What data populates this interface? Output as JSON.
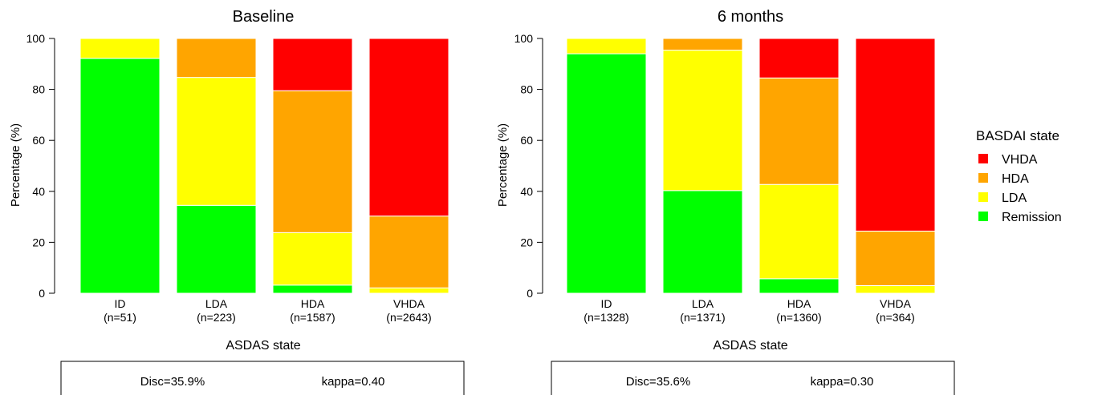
{
  "legend": {
    "title": "BASDAI state",
    "entries": [
      {
        "label": "VHDA",
        "color": "#FF0000"
      },
      {
        "label": "HDA",
        "color": "#FFA500"
      },
      {
        "label": "LDA",
        "color": "#FFFF00"
      },
      {
        "label": "Remission",
        "color": "#00FF00"
      }
    ]
  },
  "chart_data": [
    {
      "type": "bar",
      "stacked": true,
      "title": "Baseline",
      "xlabel": "ASDAS state",
      "ylabel": "Percentage (%)",
      "ylim": [
        0,
        100
      ],
      "yticks": [
        0,
        20,
        40,
        60,
        80,
        100
      ],
      "categories": [
        "ID",
        "LDA",
        "HDA",
        "VHDA"
      ],
      "category_counts": [
        "(n=51)",
        "(n=223)",
        "(n=1587)",
        "(n=2643)"
      ],
      "series": [
        {
          "name": "Remission",
          "color": "#00FF00",
          "values": [
            92.2,
            34.5,
            3.2,
            0.0
          ]
        },
        {
          "name": "LDA",
          "color": "#FFFF00",
          "values": [
            7.8,
            50.2,
            20.6,
            2.1
          ]
        },
        {
          "name": "HDA",
          "color": "#FFA500",
          "values": [
            0.0,
            15.3,
            55.7,
            28.2
          ]
        },
        {
          "name": "VHDA",
          "color": "#FF0000",
          "values": [
            0.0,
            0.0,
            20.5,
            69.7
          ]
        }
      ],
      "stats": {
        "disc": "Disc=35.9%",
        "kappa": "kappa=0.40"
      }
    },
    {
      "type": "bar",
      "stacked": true,
      "title": "6 months",
      "xlabel": "ASDAS state",
      "ylabel": "Percentage (%)",
      "ylim": [
        0,
        100
      ],
      "yticks": [
        0,
        20,
        40,
        60,
        80,
        100
      ],
      "categories": [
        "ID",
        "LDA",
        "HDA",
        "VHDA"
      ],
      "category_counts": [
        "(n=1328)",
        "(n=1371)",
        "(n=1360)",
        "(n=364)"
      ],
      "series": [
        {
          "name": "Remission",
          "color": "#00FF00",
          "values": [
            94.0,
            40.3,
            5.7,
            0.0
          ]
        },
        {
          "name": "LDA",
          "color": "#FFFF00",
          "values": [
            6.0,
            55.1,
            37.0,
            3.0
          ]
        },
        {
          "name": "HDA",
          "color": "#FFA500",
          "values": [
            0.0,
            4.6,
            41.8,
            21.4
          ]
        },
        {
          "name": "VHDA",
          "color": "#FF0000",
          "values": [
            0.0,
            0.0,
            15.5,
            75.6
          ]
        }
      ],
      "stats": {
        "disc": "Disc=35.6%",
        "kappa": "kappa=0.30"
      }
    }
  ]
}
